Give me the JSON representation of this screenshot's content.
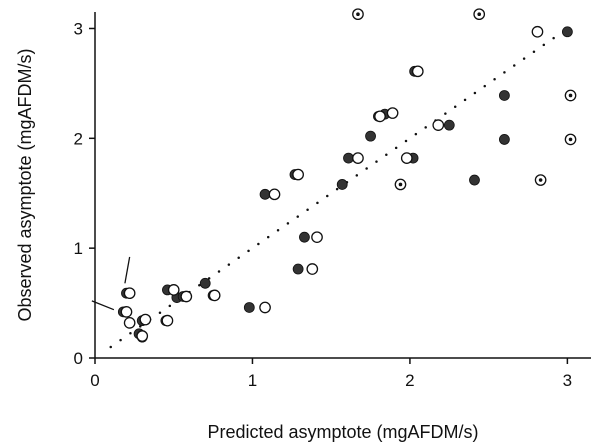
{
  "chart_data": {
    "type": "scatter",
    "title": "",
    "xlabel": "Predicted asymptote (mgAFDM/s)",
    "ylabel": "Observed asymptote (mgAFDM/s)",
    "xlim": [
      0,
      3.15
    ],
    "ylim": [
      0,
      3.15
    ],
    "xticks": [
      0,
      1,
      2,
      3
    ],
    "yticks": [
      0,
      1,
      2,
      3
    ],
    "xtick_labels": [
      "0",
      "1",
      "2",
      "3"
    ],
    "ytick_labels": [
      "0",
      "1",
      "2",
      "3"
    ],
    "grid": false,
    "legend": "none",
    "reference_line": {
      "style": "dotted",
      "color": "#111111",
      "points": [
        [
          0.1,
          0.1
        ],
        [
          3.0,
          3.0
        ]
      ]
    },
    "series": [
      {
        "marker": "filled",
        "color": "#333333",
        "x": [
          0.18,
          0.2,
          0.22,
          0.28,
          0.3,
          0.3,
          0.45,
          0.46,
          0.52,
          0.56,
          0.7,
          0.75,
          0.98,
          1.08,
          1.27,
          1.29,
          1.33,
          1.57,
          1.61,
          1.75,
          1.8,
          1.84,
          2.02,
          2.03,
          2.25,
          2.41,
          2.6,
          2.6,
          3.0
        ],
        "y": [
          0.42,
          0.59,
          0.32,
          0.22,
          0.19,
          0.34,
          0.34,
          0.62,
          0.55,
          0.56,
          0.68,
          0.57,
          0.46,
          1.49,
          1.67,
          0.81,
          1.1,
          1.58,
          1.82,
          2.02,
          2.2,
          2.22,
          1.82,
          2.61,
          2.12,
          1.62,
          2.39,
          1.99,
          2.97
        ]
      },
      {
        "marker": "open",
        "color": "#111111",
        "x": [
          0.2,
          0.22,
          0.22,
          0.3,
          0.32,
          0.46,
          0.5,
          0.58,
          0.76,
          1.08,
          1.14,
          1.29,
          1.38,
          1.41,
          1.67,
          1.81,
          1.89,
          1.98,
          2.05,
          2.18,
          2.81
        ],
        "y": [
          0.42,
          0.59,
          0.32,
          0.2,
          0.35,
          0.34,
          0.62,
          0.56,
          0.57,
          0.46,
          1.49,
          1.67,
          0.81,
          1.1,
          1.82,
          2.2,
          2.23,
          1.82,
          2.61,
          2.12,
          2.97
        ]
      },
      {
        "marker": "dotted-circle",
        "color": "#111111",
        "x": [
          1.67,
          2.44,
          1.94,
          2.83,
          3.02,
          3.02
        ],
        "y": [
          3.13,
          3.13,
          1.58,
          1.62,
          2.39,
          1.99
        ]
      }
    ],
    "annotations": [
      {
        "type": "pointer-line",
        "from": [
          -0.02,
          0.52
        ],
        "to": [
          0.12,
          0.44
        ]
      },
      {
        "type": "pointer-line",
        "from": [
          0.22,
          0.92
        ],
        "to": [
          0.19,
          0.68
        ]
      }
    ]
  }
}
